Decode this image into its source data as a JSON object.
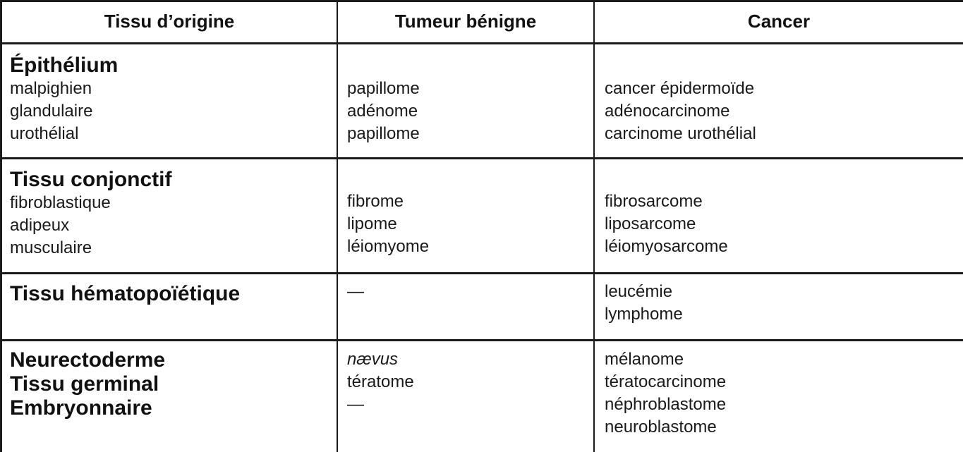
{
  "headers": {
    "origin": "Tissu d’origine",
    "benign": "Tumeur bénigne",
    "cancer": "Cancer"
  },
  "rows": [
    {
      "category": "Épithélium",
      "subtypes": [
        "malpighien",
        "glandulaire",
        "urothélial"
      ],
      "benign": [
        "papillome",
        "adénome",
        "papillome"
      ],
      "cancer": [
        "cancer épidermoïde",
        "adénocarcinome",
        "carcinome urothélial"
      ]
    },
    {
      "category": "Tissu conjonctif",
      "subtypes": [
        "fibroblastique",
        "adipeux",
        "musculaire"
      ],
      "benign": [
        "fibrome",
        "lipome",
        "léiomyome"
      ],
      "cancer": [
        "fibrosarcome",
        "liposarcome",
        "léiomyosarcome"
      ]
    },
    {
      "category": "Tissu hématopoïétique",
      "benign": [
        "—"
      ],
      "cancer": [
        "leucémie",
        "lymphome"
      ]
    },
    {
      "categories": [
        "Neurectoderme",
        "Tissu germinal",
        "Embryonnaire"
      ],
      "benign": [
        "nævus",
        "tératome",
        "—"
      ],
      "cancer": [
        "mélanome",
        "tératocarcinome",
        "néphroblastome",
        "neuroblastome"
      ]
    }
  ]
}
